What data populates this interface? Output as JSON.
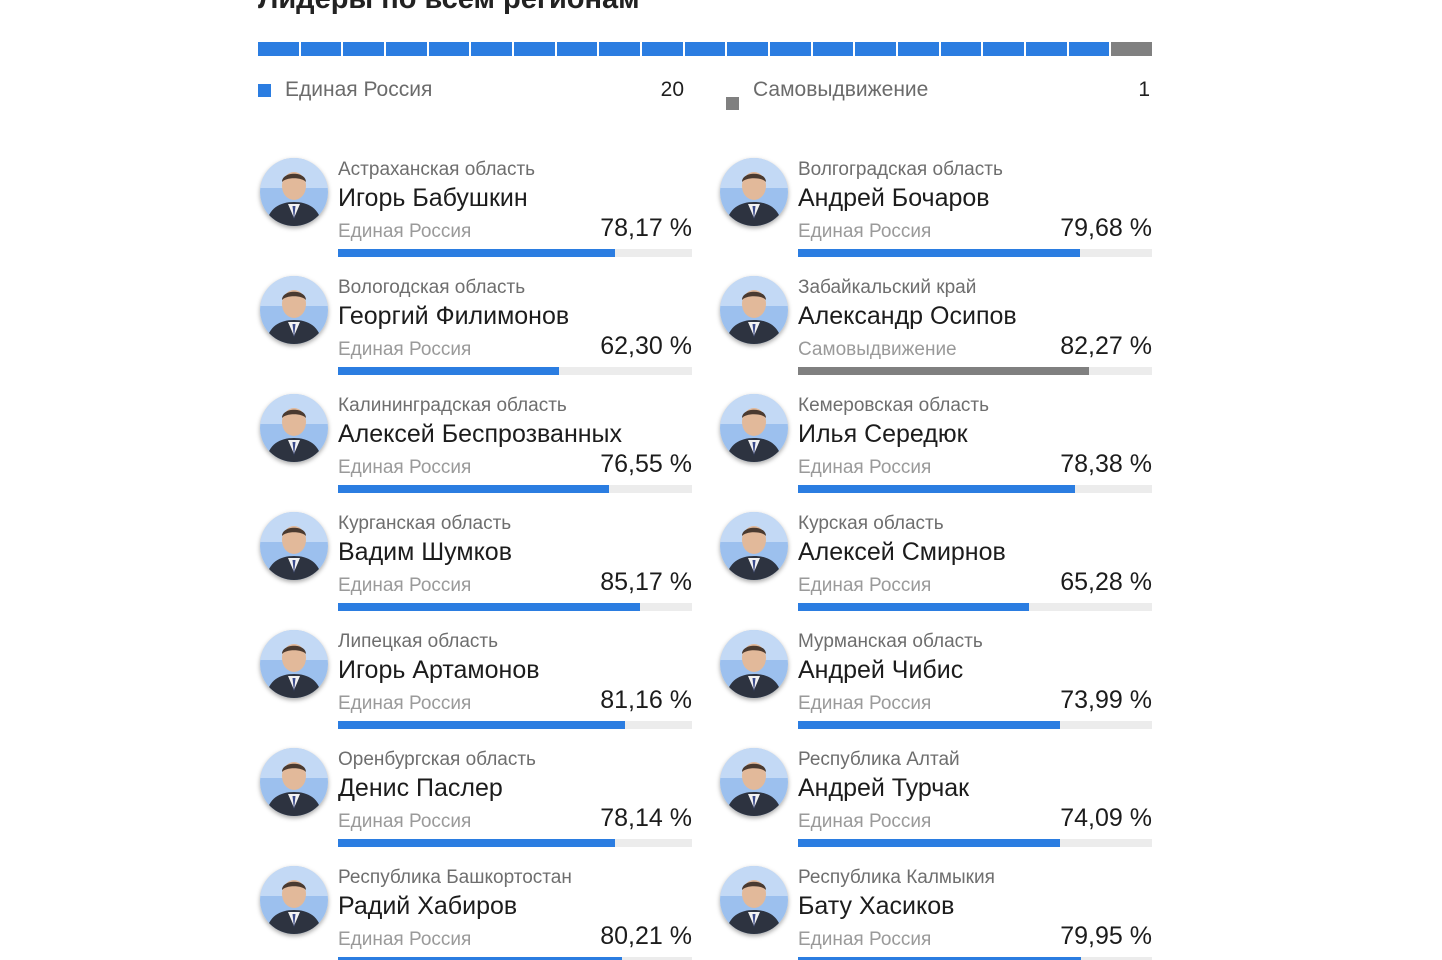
{
  "title": "Лидеры по всем регионам",
  "colors": {
    "er": "#2b7de1",
    "sv": "#808080"
  },
  "summary": {
    "segments": {
      "er": 20,
      "sv": 1
    },
    "er_label": "Единая Россия",
    "er_count": "20",
    "sv_label": "Самовыдвижение",
    "sv_count": "1"
  },
  "leaders": [
    {
      "region": "Астраханская область",
      "name": "Игорь Бабушкин",
      "party": "Единая Россия",
      "party_key": "er",
      "percent": "78,17 %",
      "value": 78.17
    },
    {
      "region": "Волгоградская область",
      "name": "Андрей Бочаров",
      "party": "Единая Россия",
      "party_key": "er",
      "percent": "79,68 %",
      "value": 79.68
    },
    {
      "region": "Вологодская область",
      "name": "Георгий Филимонов",
      "party": "Единая Россия",
      "party_key": "er",
      "percent": "62,30 %",
      "value": 62.3
    },
    {
      "region": "Забайкальский край",
      "name": "Александр Осипов",
      "party": "Самовыдвижение",
      "party_key": "sv",
      "percent": "82,27 %",
      "value": 82.27
    },
    {
      "region": "Калининградская область",
      "name": "Алексей Беспрозванных",
      "party": "Единая Россия",
      "party_key": "er",
      "percent": "76,55 %",
      "value": 76.55
    },
    {
      "region": "Кемеровская область",
      "name": "Илья Середюк",
      "party": "Единая Россия",
      "party_key": "er",
      "percent": "78,38 %",
      "value": 78.38
    },
    {
      "region": "Курганская область",
      "name": "Вадим Шумков",
      "party": "Единая Россия",
      "party_key": "er",
      "percent": "85,17 %",
      "value": 85.17
    },
    {
      "region": "Курская область",
      "name": "Алексей Смирнов",
      "party": "Единая Россия",
      "party_key": "er",
      "percent": "65,28 %",
      "value": 65.28
    },
    {
      "region": "Липецкая область",
      "name": "Игорь Артамонов",
      "party": "Единая Россия",
      "party_key": "er",
      "percent": "81,16 %",
      "value": 81.16
    },
    {
      "region": "Мурманская область",
      "name": "Андрей Чибис",
      "party": "Единая Россия",
      "party_key": "er",
      "percent": "73,99 %",
      "value": 73.99
    },
    {
      "region": "Оренбургская область",
      "name": "Денис Паслер",
      "party": "Единая Россия",
      "party_key": "er",
      "percent": "78,14 %",
      "value": 78.14
    },
    {
      "region": "Республика Алтай",
      "name": "Андрей Турчак",
      "party": "Единая Россия",
      "party_key": "er",
      "percent": "74,09 %",
      "value": 74.09
    },
    {
      "region": "Республика Башкортостан",
      "name": "Радий Хабиров",
      "party": "Единая Россия",
      "party_key": "er",
      "percent": "80,21 %",
      "value": 80.21
    },
    {
      "region": "Республика Калмыкия",
      "name": "Бату Хасиков",
      "party": "Единая Россия",
      "party_key": "er",
      "percent": "79,95 %",
      "value": 79.95
    }
  ]
}
